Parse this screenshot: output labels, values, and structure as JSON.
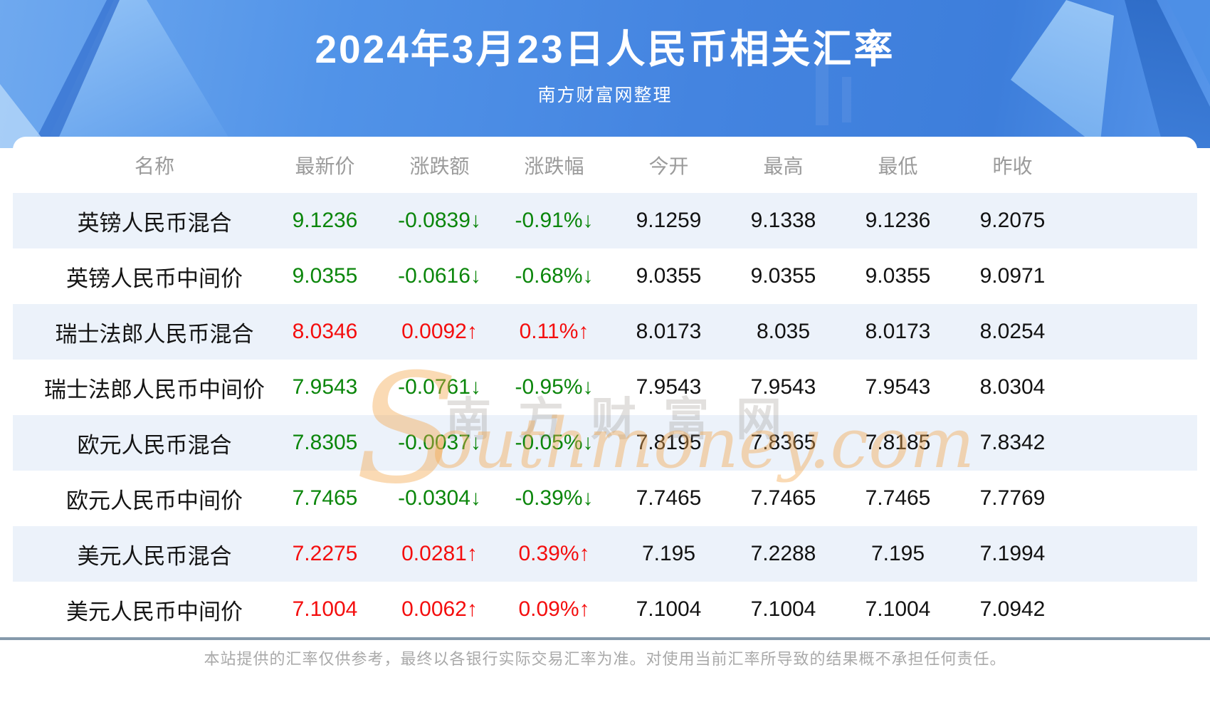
{
  "chart_data": {
    "type": "table",
    "title": "2024年3月23日人民币相关汇率",
    "subtitle": "南方财富网整理",
    "columns": [
      "名称",
      "最新价",
      "涨跌额",
      "涨跌幅",
      "今开",
      "最高",
      "最低",
      "昨收"
    ],
    "rows": [
      {
        "name": "英镑人民币混合",
        "latest": "9.1236",
        "change": "-0.0839↓",
        "change_pct": "-0.91%↓",
        "open": "9.1259",
        "high": "9.1338",
        "low": "9.1236",
        "prev_close": "9.2075",
        "trend": "down"
      },
      {
        "name": "英镑人民币中间价",
        "latest": "9.0355",
        "change": "-0.0616↓",
        "change_pct": "-0.68%↓",
        "open": "9.0355",
        "high": "9.0355",
        "low": "9.0355",
        "prev_close": "9.0971",
        "trend": "down"
      },
      {
        "name": "瑞士法郎人民币混合",
        "latest": "8.0346",
        "change": "0.0092↑",
        "change_pct": "0.11%↑",
        "open": "8.0173",
        "high": "8.035",
        "low": "8.0173",
        "prev_close": "8.0254",
        "trend": "up"
      },
      {
        "name": "瑞士法郎人民币中间价",
        "latest": "7.9543",
        "change": "-0.0761↓",
        "change_pct": "-0.95%↓",
        "open": "7.9543",
        "high": "7.9543",
        "low": "7.9543",
        "prev_close": "8.0304",
        "trend": "down"
      },
      {
        "name": "欧元人民币混合",
        "latest": "7.8305",
        "change": "-0.0037↓",
        "change_pct": "-0.05%↓",
        "open": "7.8195",
        "high": "7.8365",
        "low": "7.8185",
        "prev_close": "7.8342",
        "trend": "down"
      },
      {
        "name": "欧元人民币中间价",
        "latest": "7.7465",
        "change": "-0.0304↓",
        "change_pct": "-0.39%↓",
        "open": "7.7465",
        "high": "7.7465",
        "low": "7.7465",
        "prev_close": "7.7769",
        "trend": "down"
      },
      {
        "name": "美元人民币混合",
        "latest": "7.2275",
        "change": "0.0281↑",
        "change_pct": "0.39%↑",
        "open": "7.195",
        "high": "7.2288",
        "low": "7.195",
        "prev_close": "7.1994",
        "trend": "up"
      },
      {
        "name": "美元人民币中间价",
        "latest": "7.1004",
        "change": "0.0062↑",
        "change_pct": "0.09%↑",
        "open": "7.1004",
        "high": "7.1004",
        "low": "7.1004",
        "prev_close": "7.0942",
        "trend": "up"
      }
    ]
  },
  "watermark": {
    "cn_text": "南方财富网",
    "en_initial": "S",
    "en_text": "outhmoney.com"
  },
  "footer": {
    "disclaimer": "本站提供的汇率仅供参考，最终以各银行实际交易汇率为准。对使用当前汇率所导致的结果概不承担任何责任。"
  },
  "colors": {
    "up_red": "#f40e0e",
    "down_green": "#0b860b",
    "row_stripe": "#ecf2fa",
    "divider": "#8599ab",
    "header_text": "#9b9b9b",
    "banner_blue": "#4484e0"
  }
}
